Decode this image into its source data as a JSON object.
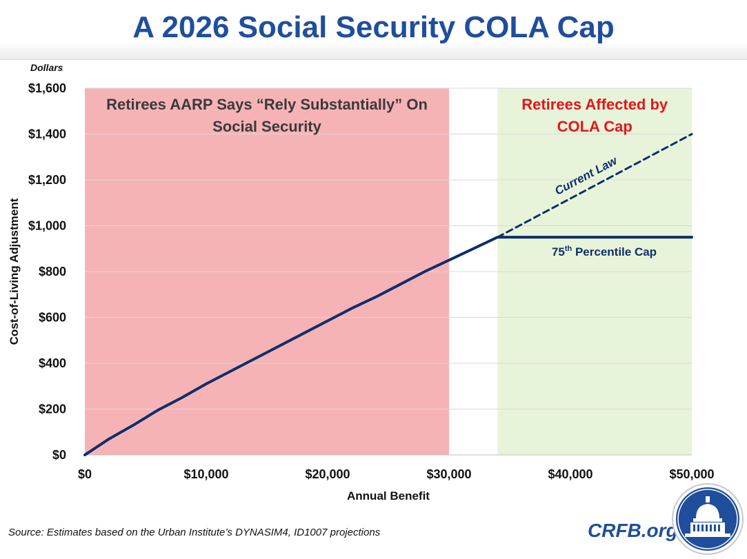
{
  "header": {
    "title": "A 2026 Social Security COLA Cap"
  },
  "chart_data": {
    "type": "line",
    "unit_label": "Dollars",
    "xlabel": "Annual Benefit",
    "ylabel": "Cost-of-Living Adjustment",
    "xlim": [
      0,
      50000
    ],
    "ylim": [
      0,
      1600
    ],
    "x_ticks": [
      0,
      10000,
      20000,
      30000,
      40000,
      50000
    ],
    "x_tick_labels": [
      "$0",
      "$10,000",
      "$20,000",
      "$30,000",
      "$40,000",
      "$50,000"
    ],
    "y_ticks": [
      0,
      200,
      400,
      600,
      800,
      1000,
      1200,
      1400,
      1600
    ],
    "y_tick_labels": [
      "$0",
      "$200",
      "$400",
      "$600",
      "$800",
      "$1,000",
      "$1,200",
      "$1,400",
      "$1,600"
    ],
    "grid": true,
    "regions": [
      {
        "label_lines": [
          "Retirees AARP Says “Rely Substantially” On",
          "Social Security"
        ],
        "x_start": 0,
        "x_end": 30000,
        "color": "#f6b3b6",
        "text_color": "#3a3a3a"
      },
      {
        "label_lines": [
          "Retirees Affected by",
          "COLA Cap"
        ],
        "x_start": 34000,
        "x_end": 50000,
        "color": "#e8f4d9",
        "text_color": "#e8141b"
      }
    ],
    "series": [
      {
        "name": "75th Percentile Cap",
        "style": "solid",
        "color": "#0e2f6b",
        "x": [
          0,
          2000,
          4000,
          6000,
          8000,
          10000,
          12000,
          14000,
          16000,
          18000,
          20000,
          22000,
          24000,
          26000,
          28000,
          30000,
          32000,
          34000,
          50000
        ],
        "y": [
          0,
          70,
          130,
          195,
          250,
          310,
          365,
          420,
          475,
          530,
          585,
          640,
          690,
          745,
          800,
          850,
          900,
          950,
          950
        ]
      },
      {
        "name": "Current Law",
        "style": "dashed",
        "color": "#0e2f6b",
        "x": [
          34000,
          50000
        ],
        "y": [
          950,
          1400
        ]
      }
    ],
    "series_labels": {
      "current_law": "Current Law",
      "cap_prefix": "75",
      "cap_sup": "th",
      "cap_suffix": " Percentile Cap"
    },
    "colors": {
      "axis_text": "#111111",
      "grid": "#d9d9d9",
      "line": "#0e2f6b"
    }
  },
  "footer": {
    "source": "Source: Estimates based on the Urban Institute’s DYNASIM4, ID1007 projections",
    "brand": "CRFB.org"
  }
}
